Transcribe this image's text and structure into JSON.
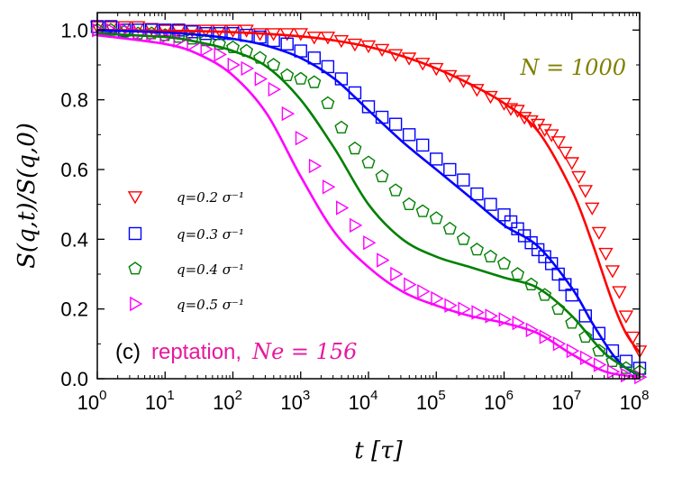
{
  "chart_data": {
    "type": "line",
    "title": "",
    "xlabel": "t [τ]",
    "ylabel": "S(q,t)/S(q,0)",
    "xscale": "log",
    "xlim": [
      1,
      100000000
    ],
    "ylim": [
      0,
      1.05
    ],
    "x_ticks": [
      {
        "value": 1,
        "label": "10",
        "exp": "0"
      },
      {
        "value": 10,
        "label": "10",
        "exp": "1"
      },
      {
        "value": 100,
        "label": "10",
        "exp": "2"
      },
      {
        "value": 1000,
        "label": "10",
        "exp": "3"
      },
      {
        "value": 10000,
        "label": "10",
        "exp": "4"
      },
      {
        "value": 100000,
        "label": "10",
        "exp": "5"
      },
      {
        "value": 1000000,
        "label": "10",
        "exp": "6"
      },
      {
        "value": 10000000,
        "label": "10",
        "exp": "7"
      },
      {
        "value": 100000000,
        "label": "10",
        "exp": "8"
      }
    ],
    "y_ticks": [
      {
        "value": 0.0,
        "label": "0.0"
      },
      {
        "value": 0.2,
        "label": "0.2"
      },
      {
        "value": 0.4,
        "label": "0.4"
      },
      {
        "value": 0.6,
        "label": "0.6"
      },
      {
        "value": 0.8,
        "label": "0.8"
      },
      {
        "value": 1.0,
        "label": "1.0"
      }
    ],
    "annotations": {
      "n_label": "N = 1000",
      "n_color": "#808000",
      "panel_prefix": "(c)",
      "panel_model": "reptation,",
      "panel_ne": "Ne = 156",
      "panel_color": "#e6199e"
    },
    "legend_position": "center-left",
    "series": [
      {
        "name": "q=0.2 σ⁻¹",
        "color": "#ff0000",
        "marker": "triangle-down",
        "line": {
          "logt": [
            0,
            1,
            2,
            3,
            3.5,
            4,
            4.5,
            5,
            5.5,
            6,
            6.5,
            7,
            7.3,
            7.6,
            7.8,
            8
          ],
          "s": [
            1.0,
            0.998,
            0.994,
            0.982,
            0.97,
            0.952,
            0.925,
            0.89,
            0.845,
            0.79,
            0.71,
            0.54,
            0.39,
            0.22,
            0.13,
            0.075
          ]
        },
        "points": {
          "logt": [
            0,
            0.2,
            0.4,
            0.6,
            0.8,
            1,
            1.2,
            1.4,
            1.6,
            1.8,
            2,
            2.2,
            2.4,
            2.6,
            2.8,
            3,
            3.2,
            3.4,
            3.6,
            3.8,
            4,
            4.2,
            4.4,
            4.6,
            4.8,
            5,
            5.2,
            5.4,
            5.6,
            5.8,
            6,
            6.1,
            6.2,
            6.3,
            6.4,
            6.5,
            6.6,
            6.7,
            6.8,
            6.9,
            7,
            7.1,
            7.2,
            7.3,
            7.4,
            7.5,
            7.6,
            7.7,
            7.8,
            7.9,
            8
          ],
          "s": [
            1.01,
            1.01,
            1.01,
            1.01,
            1.005,
            1.0,
            1.0,
            1.0,
            1.0,
            1.0,
            1.0,
            1.0,
            0.99,
            0.99,
            0.99,
            0.99,
            0.98,
            0.98,
            0.97,
            0.96,
            0.955,
            0.945,
            0.93,
            0.92,
            0.905,
            0.89,
            0.87,
            0.855,
            0.83,
            0.81,
            0.79,
            0.775,
            0.77,
            0.75,
            0.74,
            0.73,
            0.715,
            0.7,
            0.68,
            0.65,
            0.62,
            0.58,
            0.54,
            0.49,
            0.42,
            0.36,
            0.31,
            0.25,
            0.18,
            0.12,
            0.08
          ]
        }
      },
      {
        "name": "q=0.3 σ⁻¹",
        "color": "#0000ff",
        "marker": "square",
        "line": {
          "logt": [
            0,
            1,
            1.5,
            2,
            2.5,
            3,
            3.5,
            4,
            4.5,
            5,
            5.5,
            6,
            6.5,
            7,
            7.3,
            7.6,
            7.8,
            8
          ],
          "s": [
            1.0,
            0.993,
            0.986,
            0.975,
            0.955,
            0.92,
            0.86,
            0.77,
            0.68,
            0.6,
            0.52,
            0.44,
            0.38,
            0.26,
            0.16,
            0.07,
            0.03,
            0.01
          ]
        },
        "points": {
          "logt": [
            0,
            0.2,
            0.4,
            0.6,
            0.8,
            1,
            1.2,
            1.4,
            1.6,
            1.8,
            2,
            2.2,
            2.4,
            2.6,
            2.8,
            3,
            3.2,
            3.4,
            3.6,
            3.8,
            4,
            4.2,
            4.4,
            4.6,
            4.8,
            5,
            5.2,
            5.4,
            5.6,
            5.8,
            6,
            6.1,
            6.2,
            6.3,
            6.4,
            6.5,
            6.6,
            6.7,
            6.8,
            6.9,
            7,
            7.2,
            7.4,
            7.6,
            7.8,
            8
          ],
          "s": [
            1.01,
            1.01,
            1.0,
            1.0,
            1.0,
            1.0,
            1.0,
            0.995,
            0.99,
            0.99,
            0.99,
            0.985,
            0.98,
            0.97,
            0.96,
            0.94,
            0.92,
            0.895,
            0.86,
            0.82,
            0.78,
            0.75,
            0.73,
            0.7,
            0.67,
            0.63,
            0.6,
            0.57,
            0.53,
            0.5,
            0.47,
            0.45,
            0.43,
            0.41,
            0.39,
            0.37,
            0.35,
            0.33,
            0.3,
            0.27,
            0.24,
            0.18,
            0.13,
            0.08,
            0.05,
            0.03
          ]
        }
      },
      {
        "name": "q=0.4 σ⁻¹",
        "color": "#008000",
        "marker": "pentagon",
        "line": {
          "logt": [
            0,
            1,
            1.5,
            2,
            2.5,
            3,
            3.5,
            4,
            4.5,
            5,
            5.5,
            6,
            6.5,
            7,
            7.5,
            8
          ],
          "s": [
            0.99,
            0.98,
            0.965,
            0.94,
            0.895,
            0.8,
            0.66,
            0.5,
            0.4,
            0.35,
            0.32,
            0.29,
            0.26,
            0.18,
            0.07,
            0.01
          ]
        },
        "points": {
          "logt": [
            0,
            0.2,
            0.4,
            0.6,
            0.8,
            1,
            1.2,
            1.4,
            1.6,
            1.8,
            2,
            2.2,
            2.4,
            2.6,
            2.8,
            3,
            3.2,
            3.4,
            3.6,
            3.8,
            4,
            4.2,
            4.4,
            4.6,
            4.8,
            5,
            5.2,
            5.4,
            5.6,
            5.8,
            6,
            6.2,
            6.4,
            6.6,
            6.8,
            7,
            7.2,
            7.4,
            7.6,
            7.8,
            8
          ],
          "s": [
            1.0,
            1.0,
            0.995,
            0.99,
            0.99,
            0.985,
            0.98,
            0.975,
            0.97,
            0.96,
            0.95,
            0.94,
            0.92,
            0.9,
            0.87,
            0.86,
            0.85,
            0.79,
            0.72,
            0.66,
            0.62,
            0.58,
            0.54,
            0.5,
            0.48,
            0.46,
            0.43,
            0.4,
            0.37,
            0.35,
            0.33,
            0.3,
            0.27,
            0.24,
            0.2,
            0.16,
            0.12,
            0.08,
            0.05,
            0.03,
            0.02
          ]
        }
      },
      {
        "name": "q=0.5 σ⁻¹",
        "color": "#ff00ff",
        "marker": "triangle-right",
        "line": {
          "logt": [
            0,
            1,
            1.5,
            2,
            2.5,
            3,
            3.5,
            4,
            4.5,
            5,
            5.5,
            6,
            6.5,
            7,
            7.5,
            8
          ],
          "s": [
            0.985,
            0.96,
            0.93,
            0.87,
            0.76,
            0.58,
            0.42,
            0.32,
            0.25,
            0.21,
            0.18,
            0.16,
            0.13,
            0.07,
            0.02,
            0.005
          ]
        },
        "points": {
          "logt": [
            0,
            0.2,
            0.4,
            0.6,
            0.8,
            1,
            1.2,
            1.4,
            1.6,
            1.8,
            2,
            2.2,
            2.4,
            2.6,
            2.8,
            3,
            3.2,
            3.4,
            3.6,
            3.8,
            4,
            4.2,
            4.4,
            4.6,
            4.8,
            5,
            5.2,
            5.4,
            5.6,
            5.8,
            6,
            6.2,
            6.4,
            6.6,
            6.8,
            7,
            7.2,
            7.4,
            7.6,
            7.8,
            8
          ],
          "s": [
            1.0,
            1.0,
            1.0,
            0.99,
            0.985,
            0.98,
            0.97,
            0.96,
            0.945,
            0.93,
            0.9,
            0.89,
            0.86,
            0.83,
            0.76,
            0.69,
            0.61,
            0.55,
            0.49,
            0.44,
            0.39,
            0.34,
            0.3,
            0.27,
            0.25,
            0.23,
            0.21,
            0.2,
            0.19,
            0.18,
            0.17,
            0.16,
            0.14,
            0.12,
            0.1,
            0.08,
            0.06,
            0.04,
            0.02,
            0.01,
            0.005
          ]
        }
      }
    ]
  }
}
